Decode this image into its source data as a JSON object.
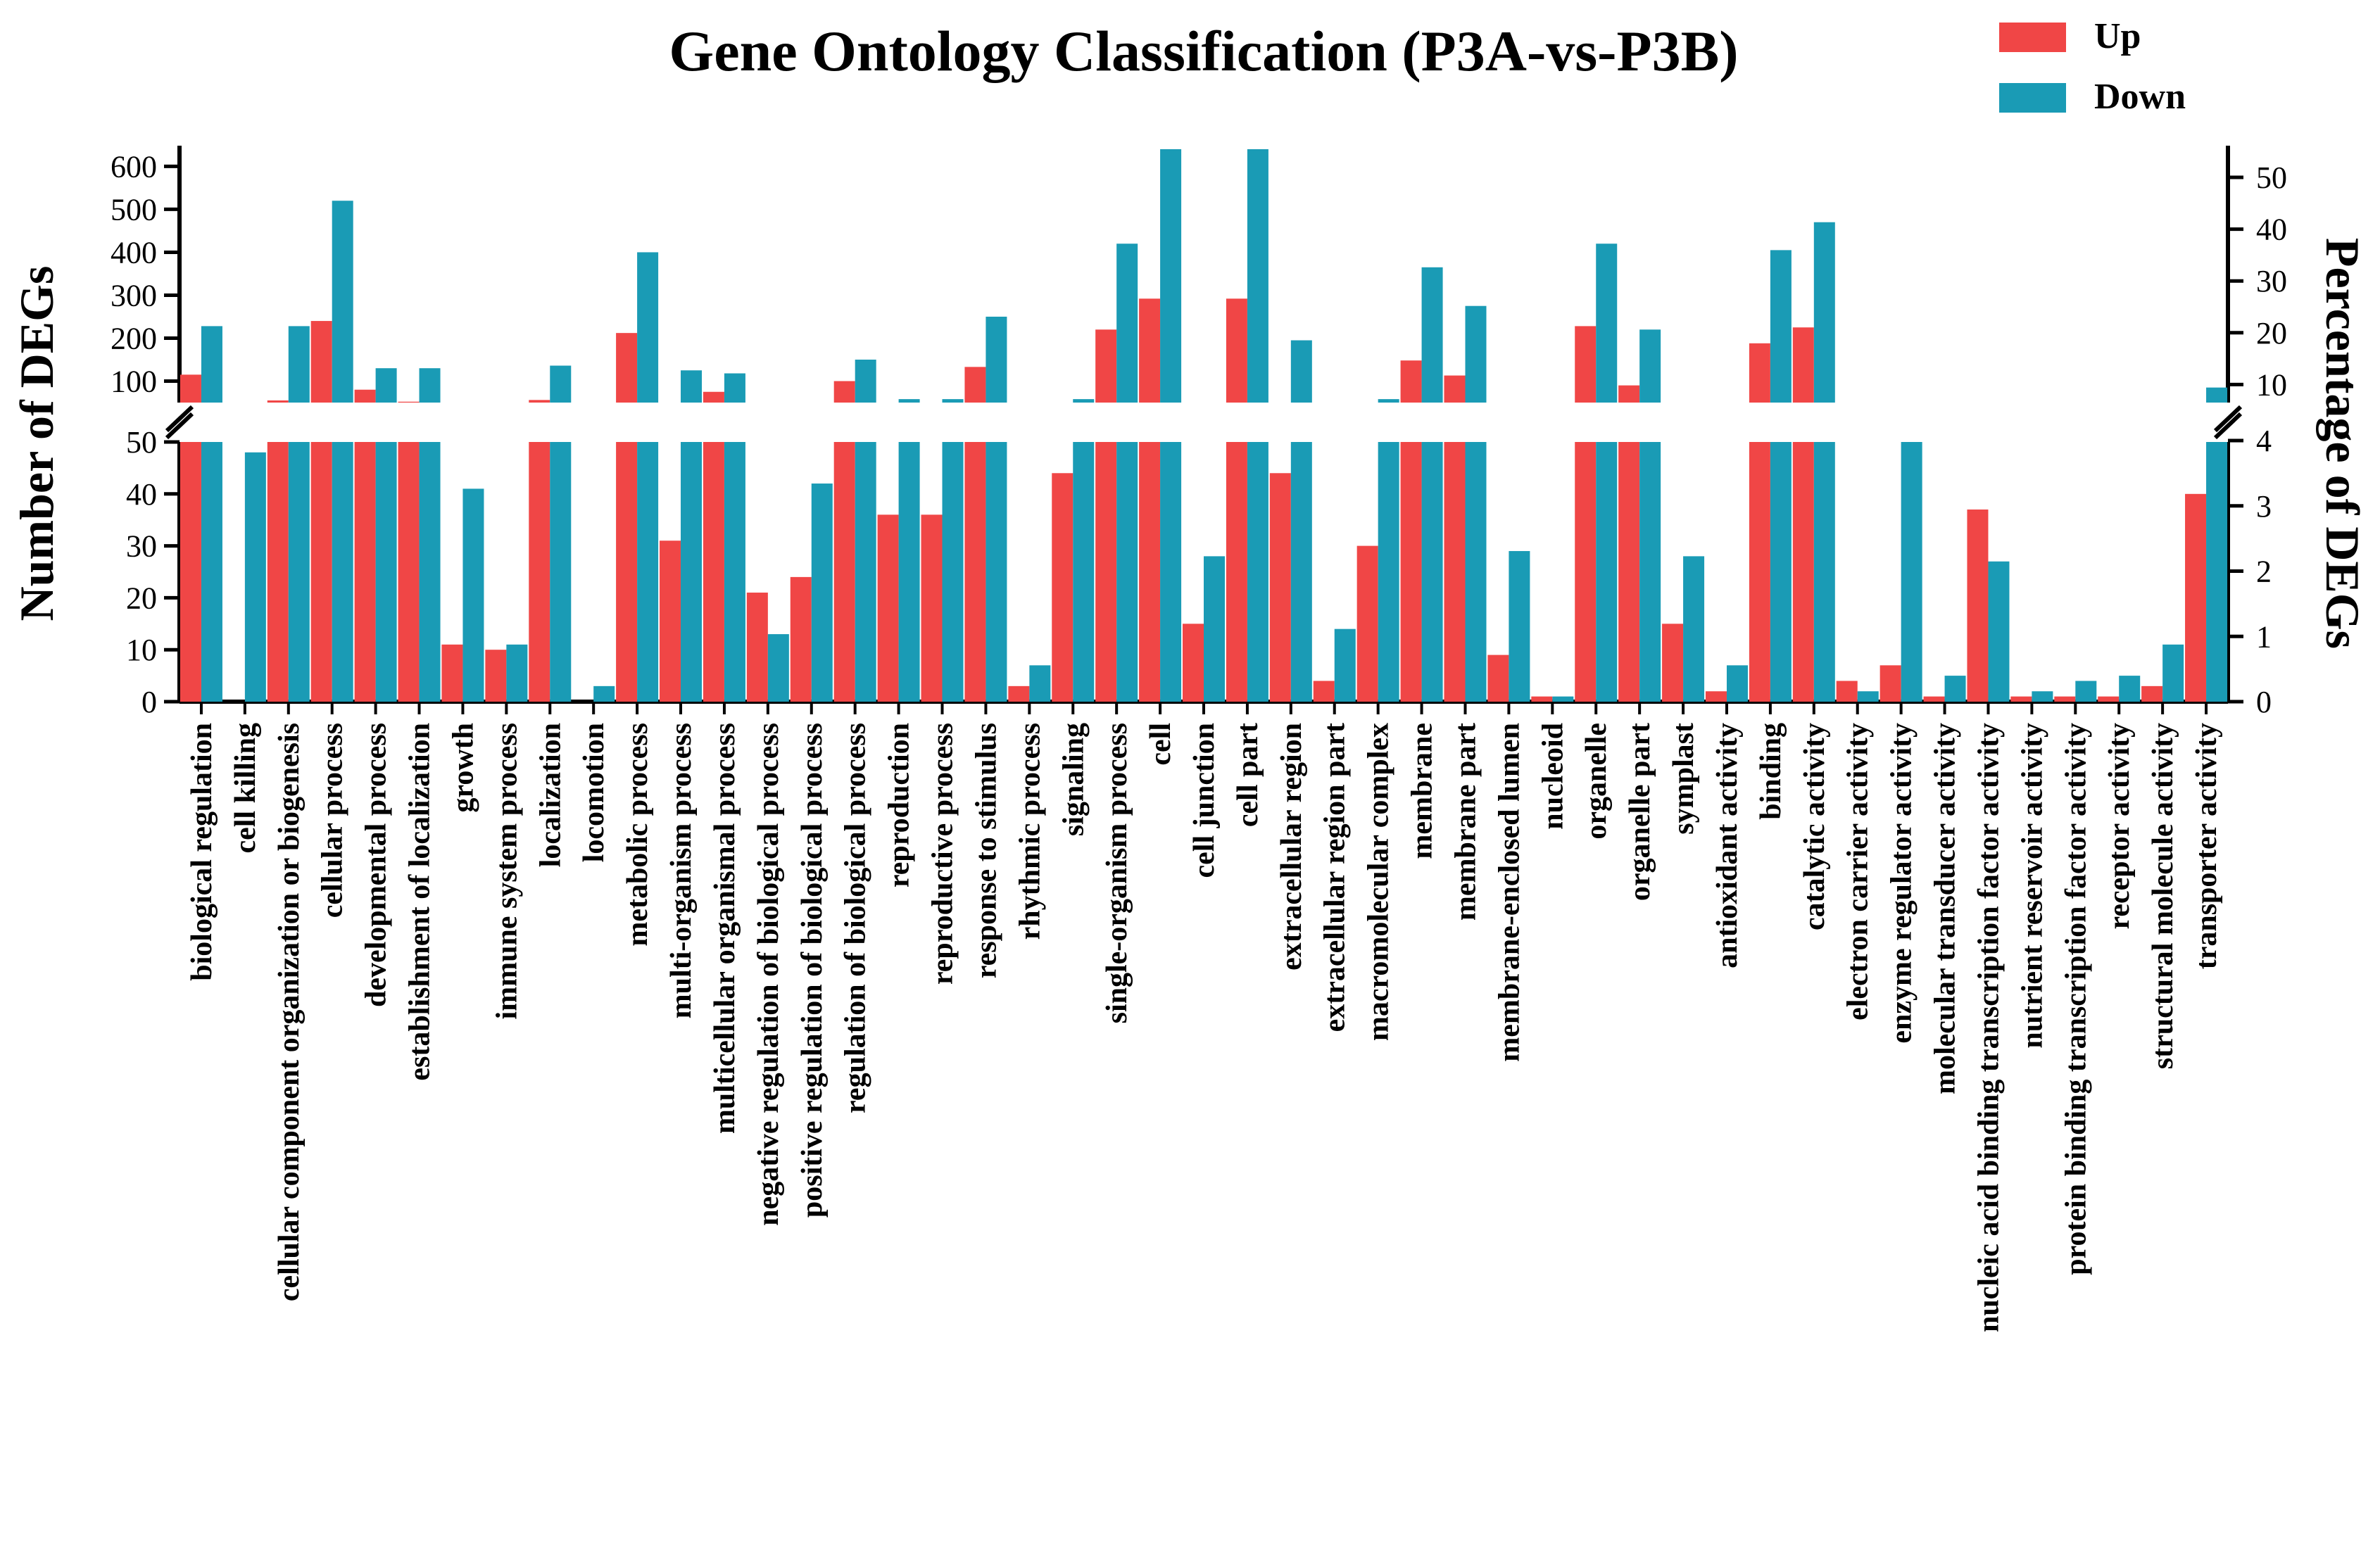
{
  "chart_data": {
    "type": "bar",
    "title": "Gene Ontology Classification (P3A-vs-P3B)",
    "ylabel": "Number of DEGs",
    "ylabel_right": "Percentage of DEGs",
    "xlabel": "",
    "y_axis_break": true,
    "ylim_lower": [
      0,
      50
    ],
    "ylim_upper": [
      50,
      640
    ],
    "yticks_lower": [
      0,
      10,
      20,
      30,
      40,
      50
    ],
    "yticks_upper": [
      100,
      200,
      300,
      400,
      500,
      600
    ],
    "yticks_right_lower": [
      0,
      1,
      2,
      3,
      4
    ],
    "yticks_right_upper": [
      10,
      20,
      30,
      40,
      50
    ],
    "legend_position": "top-right",
    "categories": [
      "biological regulation",
      "cell killing",
      "cellular component organization or biogenesis",
      "cellular process",
      "developmental process",
      "establishment of localization",
      "growth",
      "immune system process",
      "localization",
      "locomotion",
      "metabolic process",
      "multi-organism process",
      "multicellular organismal process",
      "negative regulation of biological process",
      "positive regulation of biological process",
      "regulation of biological process",
      "reproduction",
      "reproductive process",
      "response to stimulus",
      "rhythmic process",
      "signaling",
      "single-organism process",
      "cell",
      "cell junction",
      "cell part",
      "extracellular region",
      "extracellular region part",
      "macromolecular complex",
      "membrane",
      "membrane part",
      "membrane-enclosed lumen",
      "nucleoid",
      "organelle",
      "organelle part",
      "symplast",
      "antioxidant activity",
      "binding",
      "catalytic activity",
      "electron carrier activity",
      "enzyme regulator activity",
      "molecular transducer activity",
      "nucleic acid binding transcription factor activity",
      "nutrient reservoir activity",
      "protein binding transcription factor activity",
      "receptor activity",
      "structural molecule activity",
      "transporter activity"
    ],
    "series": [
      {
        "name": "Up",
        "color": "#f04646",
        "values": [
          115,
          0,
          55,
          240,
          80,
          52,
          11,
          10,
          56,
          0,
          212,
          31,
          75,
          21,
          24,
          100,
          36,
          36,
          133,
          3,
          44,
          220,
          292,
          15,
          292,
          44,
          4,
          30,
          148,
          113,
          9,
          1,
          228,
          90,
          15,
          2,
          188,
          225,
          4,
          7,
          1,
          37,
          1,
          1,
          1,
          3,
          40
        ]
      },
      {
        "name": "Down",
        "color": "#1a9bb5",
        "values": [
          228,
          48,
          228,
          520,
          130,
          130,
          41,
          11,
          136,
          3,
          400,
          125,
          118,
          13,
          42,
          150,
          58,
          58,
          250,
          7,
          58,
          420,
          640,
          28,
          640,
          195,
          14,
          58,
          365,
          275,
          29,
          1,
          420,
          220,
          28,
          7,
          405,
          470,
          2,
          50,
          5,
          27,
          2,
          4,
          5,
          11,
          85
        ]
      }
    ]
  }
}
